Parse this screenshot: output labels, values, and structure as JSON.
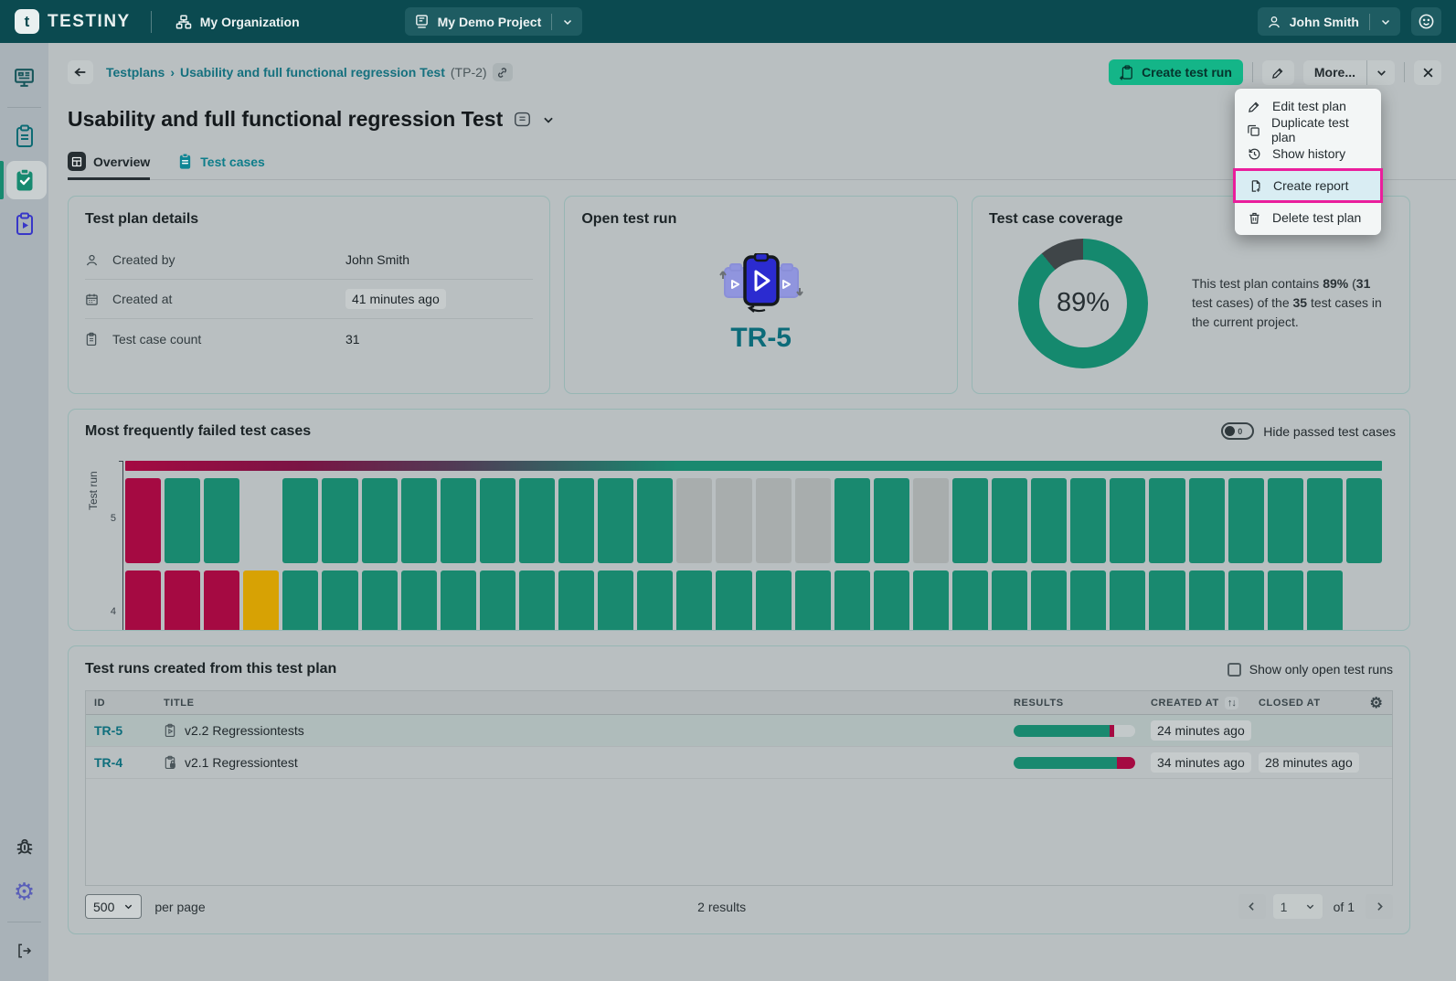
{
  "topbar": {
    "brand": "TESTINY",
    "brand_glyph": "t",
    "org": "My Organization",
    "project": "My Demo Project",
    "user": "John Smith",
    "icons": [
      "org-chart-icon",
      "project-icon",
      "user-icon",
      "chevron-down-icon",
      "smiley-help-icon"
    ],
    "bg_color": "#0B4A50"
  },
  "sidebar": {
    "items": [
      {
        "icon": "dashboard-icon"
      },
      {
        "icon": "test-cases-clipboard-icon"
      },
      {
        "icon": "test-plans-clipboard-check-icon",
        "active": true
      },
      {
        "icon": "test-runs-clipboard-play-icon"
      }
    ],
    "bottom_items": [
      {
        "icon": "bug-icon"
      },
      {
        "icon": "gear-icon"
      },
      {
        "icon": "collapse-icon"
      }
    ]
  },
  "header": {
    "breadcrumb_root": "Testplans",
    "breadcrumb_sep": "›",
    "breadcrumb_current": "Usability and full functional regression Test",
    "breadcrumb_code": "(TP-2)",
    "create_test_run": "Create test run",
    "more": "More..."
  },
  "menu": {
    "items": [
      {
        "label": "Edit test plan",
        "icon": "pencil-icon",
        "highlighted": false
      },
      {
        "label": "Duplicate test plan",
        "icon": "duplicate-icon",
        "highlighted": false
      },
      {
        "label": "Show history",
        "icon": "history-icon",
        "highlighted": false
      },
      {
        "label": "Create report",
        "icon": "report-icon",
        "highlighted": true
      },
      {
        "label": "Delete test plan",
        "icon": "trash-icon",
        "highlighted": false
      }
    ],
    "highlight_border": "#EA1E9C",
    "highlight_bg": "#D9EDF3"
  },
  "page": {
    "title": "Usability and full functional regression Test",
    "tabs": [
      {
        "label": "Overview",
        "active": true,
        "icon": "overview-grid-icon"
      },
      {
        "label": "Test cases",
        "active": false,
        "icon": "test-cases-clipboard-icon"
      }
    ]
  },
  "details_card": {
    "title": "Test plan details",
    "rows": [
      {
        "icon": "user-icon",
        "label": "Created by",
        "value": "John Smith",
        "pill": false
      },
      {
        "icon": "calendar-icon",
        "label": "Created at",
        "value": "41 minutes ago",
        "pill": true
      },
      {
        "icon": "clipboard-icon",
        "label": "Test case count",
        "value": "31",
        "pill": false
      }
    ]
  },
  "open_run_card": {
    "title": "Open test run",
    "run_id": "TR-5",
    "icon": "test-run-play-icon"
  },
  "coverage_card": {
    "title": "Test case coverage",
    "percent_label": "89%",
    "percent_value": 89,
    "ring_color": "#15896E",
    "rest_color": "#3F4548",
    "desc": {
      "p1": "This test plan contains ",
      "p2": "89%",
      "p3": " (",
      "p4": "31",
      "p5": " test cases) of the ",
      "p6": "35",
      "p7": " test cases in the current project."
    }
  },
  "chart_data": {
    "type": "heatmap",
    "title": "Most frequently failed test cases",
    "toggle_label": "Hide passed test cases",
    "toggle_count": "0",
    "toggle_state": "off",
    "ylabel": "Test run",
    "columns": 32,
    "legend": "cells are test cases per test run; status by color",
    "colors": {
      "passed": "#19896F",
      "failed": "#A50A42",
      "skipped": "#A8ADAD",
      "untested": "#D7A204",
      "empty_track": "#C3C9CA"
    },
    "summary_gradient": [
      "#A50A42 0%",
      "#7A1444 14%",
      "#523A55 26%",
      "#2A6F67 38%",
      "#19896F 44%",
      "#19896F 100%"
    ],
    "rows": [
      {
        "label": "5",
        "cells": [
          "failed",
          "passed",
          "passed",
          null,
          "passed",
          "passed",
          "passed",
          "passed",
          "passed",
          "passed",
          "passed",
          "passed",
          "passed",
          "passed",
          "skipped",
          "skipped",
          "skipped",
          "skipped",
          "passed",
          "passed",
          "skipped",
          "passed",
          "passed",
          "passed",
          "passed",
          "passed",
          "passed",
          "passed",
          "passed",
          "passed",
          "passed",
          "passed"
        ]
      },
      {
        "label": "4",
        "cells": [
          "failed",
          "failed",
          "failed",
          "untested",
          "passed",
          "passed",
          "passed",
          "passed",
          "passed",
          "passed",
          "passed",
          "passed",
          "passed",
          "passed",
          "passed",
          "passed",
          "passed",
          "passed",
          "passed",
          "passed",
          "passed",
          "passed",
          "passed",
          "passed",
          "passed",
          "passed",
          "passed",
          "passed",
          "passed",
          "passed",
          "passed",
          null
        ]
      }
    ]
  },
  "runs_table": {
    "title": "Test runs created from this test plan",
    "filter_label": "Show only open test runs",
    "filter_checked": false,
    "columns": {
      "id": "ID",
      "title": "TITLE",
      "results": "RESULTS",
      "created": "CREATED AT",
      "closed": "CLOSED AT"
    },
    "sort_icon": "↑↓",
    "rows": [
      {
        "id": "TR-5",
        "icon": "run-open-icon",
        "title": "v2.2 Regressiontests",
        "created": "24 minutes ago",
        "closed": "",
        "highlight": true,
        "progress": [
          {
            "status": "passed",
            "pct": 79
          },
          {
            "status": "failed",
            "pct": 4
          },
          {
            "status": "empty",
            "pct": 17
          }
        ]
      },
      {
        "id": "TR-4",
        "icon": "run-closed-icon",
        "title": "v2.1 Regressiontest",
        "created": "34 minutes ago",
        "closed": "28 minutes ago",
        "highlight": false,
        "progress": [
          {
            "status": "passed",
            "pct": 85
          },
          {
            "status": "failed",
            "pct": 15
          }
        ]
      }
    ],
    "footer": {
      "per_page_value": "500",
      "per_page_label": "per page",
      "results_label": "2 results",
      "page_value": "1",
      "of_label": "of 1"
    }
  }
}
